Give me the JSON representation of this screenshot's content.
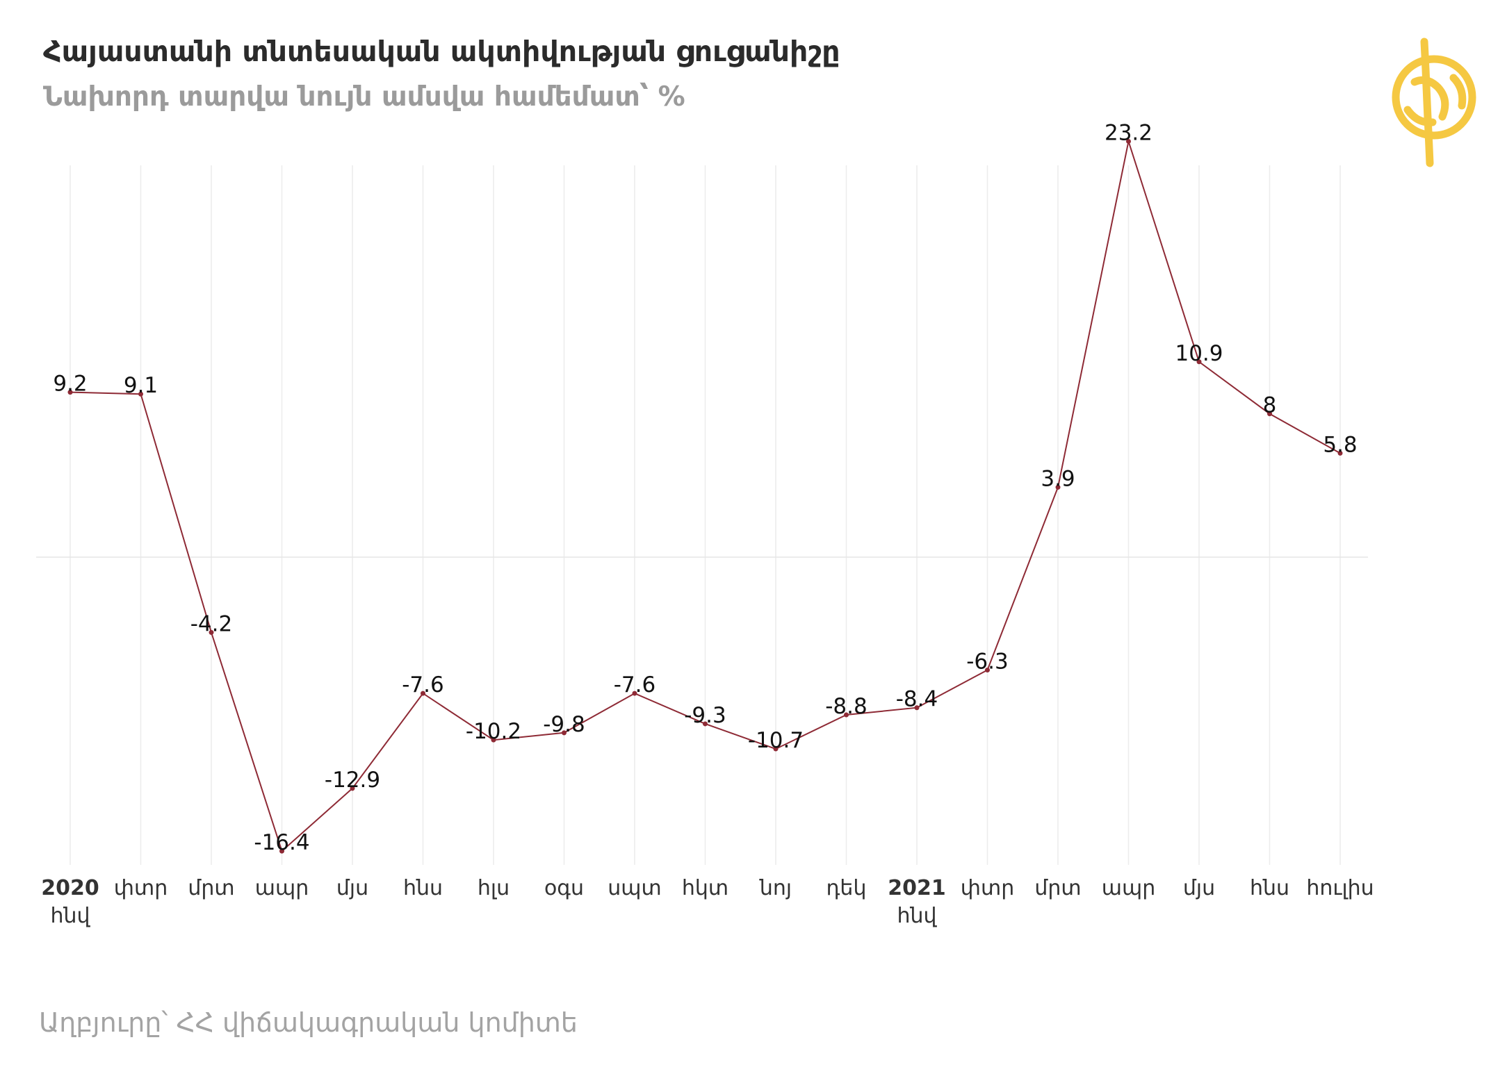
{
  "header": {
    "title": "Հայաստանի տնտեսական ակտիվության ցուցանիշը",
    "subtitle": "Նախորդ տարվա նույն ամսվա համեմատ՝ %"
  },
  "footer": {
    "source": "Աղբյուրը՝ ՀՀ վիճակագրական կոմիտե"
  },
  "logo": {
    "icon": "globe-logo-icon",
    "color": "#f5c842"
  },
  "chart_data": {
    "type": "line",
    "title": "Հայաստանի տնտեսական ակտիվության ցուցանիշը",
    "subtitle": "Նախորդ տարվա նույն ամսվա համեմատ՝ %",
    "xlabel": "",
    "ylabel": "",
    "ylim": [
      -20,
      27
    ],
    "grid": "vertical",
    "legend": "none",
    "line_color": "#8e2a35",
    "categories": [
      {
        "label": "հնվ",
        "year": "2020"
      },
      {
        "label": "փտր"
      },
      {
        "label": "մրտ"
      },
      {
        "label": "ապր"
      },
      {
        "label": "մյս"
      },
      {
        "label": "հնս"
      },
      {
        "label": "հլս"
      },
      {
        "label": "օգս"
      },
      {
        "label": "սպտ"
      },
      {
        "label": "հկտ"
      },
      {
        "label": "նոյ"
      },
      {
        "label": "դեկ"
      },
      {
        "label": "հնվ",
        "year": "2021"
      },
      {
        "label": "փտր"
      },
      {
        "label": "մրտ"
      },
      {
        "label": "ապր"
      },
      {
        "label": "մյս"
      },
      {
        "label": "հնս"
      },
      {
        "label": "հուլիս"
      }
    ],
    "series": [
      {
        "values": [
          9.2,
          9.1,
          -4.2,
          -16.4,
          -12.9,
          -7.6,
          -10.2,
          -9.8,
          -7.6,
          -9.3,
          -10.7,
          -8.8,
          -8.4,
          -6.3,
          3.9,
          23.2,
          10.9,
          8,
          5.8
        ]
      }
    ]
  }
}
